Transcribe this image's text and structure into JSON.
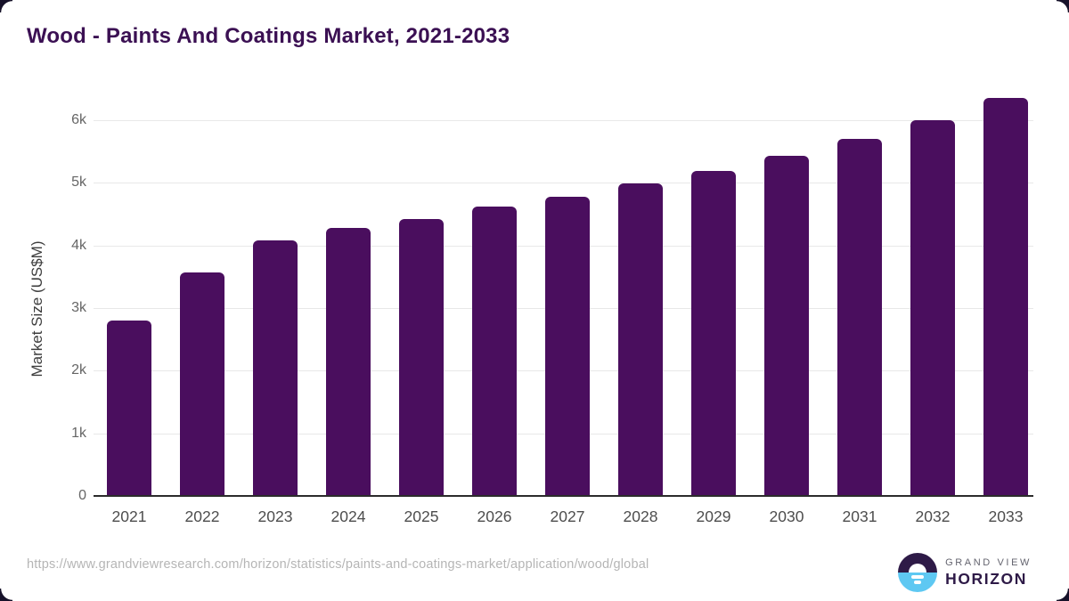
{
  "header": {
    "title": "Wood - Paints And Coatings Market, 2021-2033"
  },
  "chart_data": {
    "type": "bar",
    "title": "Wood - Paints And Coatings Market, 2021-2033",
    "categories": [
      "2021",
      "2022",
      "2023",
      "2024",
      "2025",
      "2026",
      "2027",
      "2028",
      "2029",
      "2030",
      "2031",
      "2032",
      "2033"
    ],
    "values": [
      2800,
      3570,
      4080,
      4280,
      4420,
      4620,
      4780,
      4990,
      5190,
      5430,
      5700,
      6000,
      6350
    ],
    "xlabel": "",
    "ylabel": "Market Size (US$M)",
    "ylim": [
      0,
      6500
    ],
    "yticks": [
      0,
      1000,
      2000,
      3000,
      4000,
      5000,
      6000
    ],
    "ytick_labels": [
      "0",
      "1k",
      "2k",
      "3k",
      "4k",
      "5k",
      "6k"
    ],
    "grid": true,
    "legend_position": "none",
    "bar_color": "#4a0e5e"
  },
  "footer": {
    "source_url": "https://www.grandviewresearch.com/horizon/statistics/paints-and-coatings-market/application/wood/global",
    "logo": {
      "line1": "GRAND VIEW",
      "line2": "HORIZON"
    }
  },
  "colors": {
    "title": "#3b1053",
    "bar": "#4a0e5e",
    "gridline": "#e8e8e8",
    "axis_line": "#2b2b2b",
    "y_tick_text": "#666666",
    "x_tick_text": "#4d4d4d",
    "url_text": "#b5b5b5",
    "logo_dark": "#2e1a47",
    "logo_blue": "#5ec8f2"
  }
}
